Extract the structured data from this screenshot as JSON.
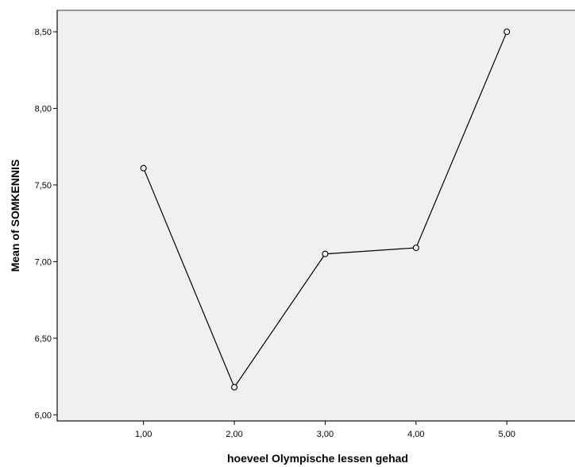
{
  "chart_data": {
    "type": "line",
    "xlabel": "hoeveel Olympische lessen gehad",
    "ylabel": "Mean of SOMKENNIS",
    "x": [
      "1,00",
      "2,00",
      "3,00",
      "4,00",
      "5,00"
    ],
    "x_values": [
      1,
      2,
      3,
      4,
      5
    ],
    "series": [
      {
        "values": [
          7.61,
          6.18,
          7.05,
          7.09,
          8.5
        ]
      }
    ],
    "xlim": [
      0.05,
      5.75
    ],
    "ylim": [
      5.96,
      8.64
    ],
    "y_ticks": [
      6.0,
      6.5,
      7.0,
      7.5,
      8.0,
      8.5
    ],
    "y_tick_labels": [
      "6,00",
      "6,50",
      "7,00",
      "7,50",
      "8,00",
      "8,50"
    ],
    "grid": false,
    "legend": "none",
    "colors": {
      "plot_background": "#f0f0f0",
      "line": "#000000",
      "marker_fill": "#f0f0f0",
      "axis": "#000000",
      "frame": "#555555"
    }
  }
}
